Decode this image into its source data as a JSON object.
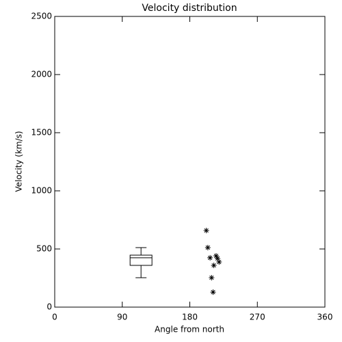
{
  "chart_data": [
    {
      "type": "box",
      "title": "Velocity distribution",
      "x_label": "Angle from north",
      "y_label": "Velocity (km/s)",
      "xlim": [
        0,
        360
      ],
      "xticks": [
        0,
        90,
        180,
        270,
        360
      ],
      "ylim": [
        0,
        2500
      ],
      "yticks": [
        0,
        500,
        1000,
        1500,
        2000,
        2500
      ],
      "color": "#000000",
      "boxes": [
        {
          "x": 115,
          "whislo": 253,
          "q1": 359,
          "med": 424,
          "q3": 447,
          "whishi": 512
        }
      ]
    },
    {
      "type": "scatter",
      "marker": "asterisk",
      "color": "#000000",
      "x": [
        202,
        204,
        207,
        215,
        217,
        219,
        212,
        209,
        211
      ],
      "y": [
        659,
        512,
        424,
        441,
        418,
        388,
        359,
        253,
        129
      ]
    }
  ]
}
